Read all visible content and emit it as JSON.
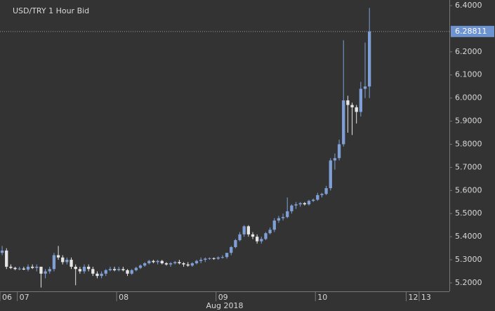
{
  "chart_data": {
    "type": "candlestick",
    "title": "USD/TRY  1 Hour Bid",
    "x_axis_label": "Aug 2018",
    "categories": [
      "06",
      null,
      null,
      null,
      "07",
      null,
      null,
      null,
      null,
      null,
      null,
      null,
      null,
      null,
      null,
      null,
      null,
      null,
      null,
      null,
      null,
      null,
      null,
      null,
      null,
      null,
      null,
      "08",
      null,
      null,
      null,
      null,
      null,
      null,
      null,
      null,
      null,
      null,
      null,
      null,
      null,
      null,
      null,
      null,
      null,
      null,
      null,
      null,
      null,
      null,
      "09",
      null,
      null,
      null,
      null,
      null,
      null,
      null,
      null,
      null,
      null,
      null,
      null,
      null,
      null,
      null,
      null,
      null,
      null,
      null,
      null,
      null,
      null,
      "10",
      null,
      null,
      null,
      null,
      null,
      null,
      null,
      null,
      null,
      null,
      null,
      null,
      null,
      null,
      null,
      null,
      null,
      null,
      null,
      null,
      "12",
      null,
      null,
      "13",
      null,
      null,
      null,
      null,
      null,
      null
    ],
    "open": [
      5.33,
      5.34,
      5.27,
      5.265,
      5.26,
      5.262,
      5.258,
      5.27,
      5.265,
      5.27,
      5.24,
      5.25,
      5.26,
      5.32,
      5.31,
      5.29,
      5.3,
      5.27,
      5.26,
      5.25,
      5.27,
      5.26,
      5.24,
      5.23,
      5.24,
      5.255,
      5.26,
      5.255,
      5.26,
      5.255,
      5.24,
      5.255,
      5.265,
      5.275,
      5.285,
      5.295,
      5.29,
      5.295,
      5.285,
      5.28,
      5.285,
      5.29,
      5.285,
      5.28,
      5.275,
      5.285,
      5.295,
      5.3,
      5.305,
      5.307,
      5.305,
      5.31,
      5.312,
      5.33,
      5.355,
      5.385,
      5.41,
      5.445,
      5.41,
      5.4,
      5.38,
      5.39,
      5.415,
      5.43,
      5.47,
      5.48,
      5.485,
      5.51,
      5.535,
      5.54,
      5.545,
      5.54,
      5.555,
      5.56,
      5.58,
      5.585,
      5.61,
      5.73,
      5.74,
      5.8,
      5.99,
      5.97,
      5.96,
      5.94,
      6.04,
      6.05,
      null,
      null,
      null,
      null,
      null,
      null,
      null,
      null,
      null,
      null,
      null,
      null,
      null,
      null,
      null,
      null,
      null,
      null
    ],
    "high": [
      5.36,
      5.35,
      5.28,
      5.27,
      5.27,
      5.27,
      5.28,
      5.28,
      5.28,
      5.27,
      5.26,
      5.27,
      5.33,
      5.36,
      5.32,
      5.31,
      5.31,
      5.28,
      5.27,
      5.28,
      5.28,
      5.27,
      5.25,
      5.25,
      5.26,
      5.27,
      5.27,
      5.27,
      5.27,
      5.26,
      5.26,
      5.27,
      5.28,
      5.29,
      5.3,
      5.3,
      5.3,
      5.3,
      5.29,
      5.29,
      5.295,
      5.3,
      5.29,
      5.29,
      5.29,
      5.3,
      5.31,
      5.31,
      5.31,
      5.31,
      5.315,
      5.32,
      5.33,
      5.36,
      5.39,
      5.42,
      5.45,
      5.45,
      5.42,
      5.41,
      5.4,
      5.42,
      5.44,
      5.48,
      5.49,
      5.5,
      5.57,
      5.54,
      5.55,
      5.55,
      5.55,
      5.56,
      5.565,
      5.59,
      5.59,
      5.62,
      5.74,
      5.76,
      5.82,
      6.25,
      6.01,
      5.98,
      5.97,
      6.07,
      6.24,
      6.39,
      null,
      null,
      null,
      null,
      null,
      null,
      null,
      null,
      null,
      null,
      null,
      null,
      null,
      null,
      null,
      null,
      null,
      null
    ],
    "low": [
      5.32,
      5.26,
      5.26,
      5.255,
      5.255,
      5.255,
      5.25,
      5.26,
      5.25,
      5.18,
      5.22,
      5.24,
      5.25,
      5.3,
      5.28,
      5.28,
      5.26,
      5.19,
      5.24,
      5.24,
      5.25,
      5.23,
      5.22,
      5.22,
      5.23,
      5.25,
      5.25,
      5.25,
      5.25,
      5.23,
      5.235,
      5.25,
      5.26,
      5.27,
      5.28,
      5.285,
      5.28,
      5.28,
      5.275,
      5.27,
      5.28,
      5.28,
      5.27,
      5.27,
      5.27,
      5.28,
      5.285,
      5.29,
      5.3,
      5.3,
      5.3,
      5.305,
      5.305,
      5.32,
      5.35,
      5.38,
      5.4,
      5.4,
      5.39,
      5.37,
      5.37,
      5.385,
      5.41,
      5.42,
      5.46,
      5.47,
      5.48,
      5.5,
      5.52,
      5.53,
      5.535,
      5.535,
      5.55,
      5.555,
      5.57,
      5.58,
      5.6,
      5.69,
      5.73,
      5.79,
      5.85,
      5.84,
      5.89,
      5.92,
      6.0,
      6.0,
      null,
      null,
      null,
      null,
      null,
      null,
      null,
      null,
      null,
      null,
      null,
      null,
      null,
      null,
      null,
      null,
      null,
      null
    ],
    "close": [
      5.34,
      5.27,
      5.265,
      5.26,
      5.262,
      5.258,
      5.27,
      5.265,
      5.27,
      5.24,
      5.25,
      5.26,
      5.32,
      5.31,
      5.29,
      5.3,
      5.27,
      5.26,
      5.25,
      5.27,
      5.26,
      5.24,
      5.23,
      5.24,
      5.255,
      5.26,
      5.255,
      5.26,
      5.255,
      5.24,
      5.255,
      5.265,
      5.275,
      5.285,
      5.295,
      5.29,
      5.295,
      5.285,
      5.28,
      5.285,
      5.29,
      5.285,
      5.28,
      5.275,
      5.285,
      5.295,
      5.3,
      5.305,
      5.307,
      5.305,
      5.31,
      5.312,
      5.33,
      5.355,
      5.385,
      5.41,
      5.445,
      5.41,
      5.4,
      5.38,
      5.39,
      5.415,
      5.43,
      5.47,
      5.48,
      5.485,
      5.51,
      5.535,
      5.54,
      5.545,
      5.54,
      5.555,
      5.56,
      5.58,
      5.585,
      5.61,
      5.73,
      5.74,
      5.8,
      5.99,
      5.97,
      5.96,
      5.94,
      6.04,
      6.05,
      6.28811,
      null,
      null,
      null,
      null,
      null,
      null,
      null,
      null,
      null,
      null,
      null,
      null,
      null,
      null,
      null,
      null,
      null,
      null
    ],
    "up_color": "#7f9fd6",
    "down_color": "#e6e6e6",
    "last_value": 6.28811,
    "last_color": "#6d93d0",
    "ylim": [
      5.1635,
      6.4243
    ],
    "yticks": [
      {
        "value": 5.2,
        "label": "5.2000"
      },
      {
        "value": 5.3,
        "label": "5.3000"
      },
      {
        "value": 5.4,
        "label": "5.4000"
      },
      {
        "value": 5.5,
        "label": "5.5000"
      },
      {
        "value": 5.6,
        "label": "5.6000"
      },
      {
        "value": 5.7,
        "label": "5.7000"
      },
      {
        "value": 5.8,
        "label": "5.8000"
      },
      {
        "value": 5.9,
        "label": "5.9000"
      },
      {
        "value": 6.0,
        "label": "6.0000"
      },
      {
        "value": 6.1,
        "label": "6.1000"
      },
      {
        "value": 6.2,
        "label": "6.2000"
      },
      {
        "value": 6.4,
        "label": "6.4000"
      }
    ]
  }
}
